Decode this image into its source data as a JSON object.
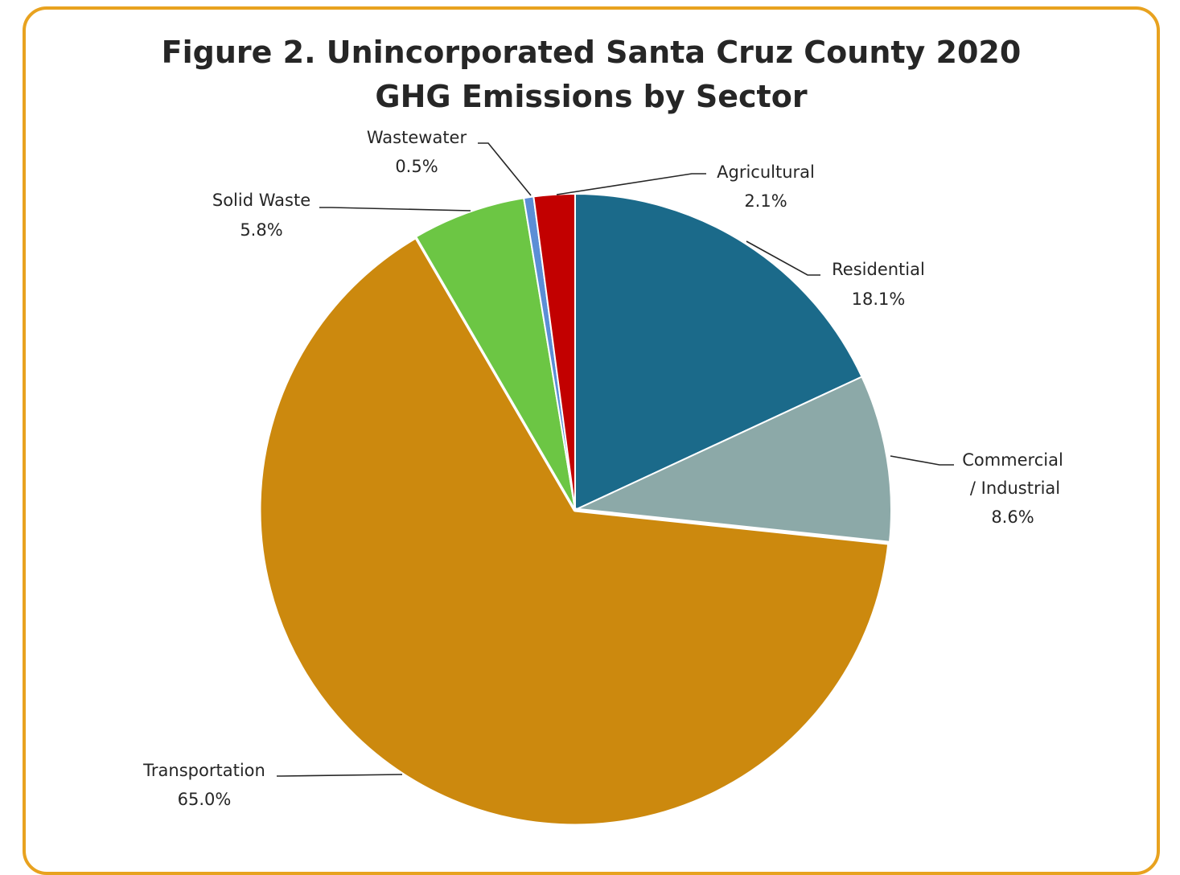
{
  "chart_data": {
    "type": "pie",
    "title_lines": [
      "Figure 2. Unincorporated Santa Cruz County 2020",
      "GHG Emissions by Sector"
    ],
    "start_angle_deg": 0,
    "direction": "clockwise",
    "slices": [
      {
        "key": "residential",
        "name": "Residential",
        "value": 18.1,
        "value_label": "18.1%",
        "color": "#1B6A8A"
      },
      {
        "key": "commercial",
        "name_lines": [
          "Commercial",
          "/ Industrial"
        ],
        "value": 8.6,
        "value_label": "8.6%",
        "color": "#8CA9A8"
      },
      {
        "key": "transportation",
        "name": "Transportation",
        "value": 65.0,
        "value_label": "65.0%",
        "color": "#CC890E"
      },
      {
        "key": "solid_waste",
        "name": "Solid Waste",
        "value": 5.8,
        "value_label": "5.8%",
        "color": "#6CC644"
      },
      {
        "key": "wastewater",
        "name": "Wastewater",
        "value": 0.5,
        "value_label": "0.5%",
        "color": "#5B8ED6"
      },
      {
        "key": "agricultural",
        "name": "Agricultural",
        "value": 2.1,
        "value_label": "2.1%",
        "color": "#C20000"
      }
    ],
    "frame_color": "#E8A21F"
  }
}
